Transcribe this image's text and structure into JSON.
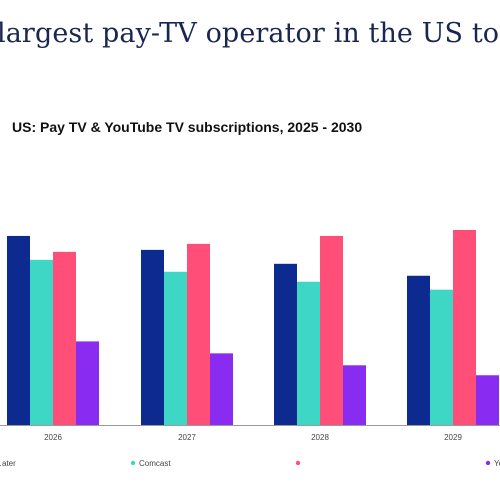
{
  "headline": "largest pay-TV operator in the US to",
  "chart_data": {
    "type": "bar",
    "title": "US: Pay TV & YouTube TV subscriptions, 2025 - 2030",
    "xlabel": "",
    "ylabel": "",
    "categories": [
      "2026",
      "2027",
      "2028",
      "2029"
    ],
    "series": [
      {
        "name": "…ater",
        "color": "#0c2a8f",
        "values": [
          95,
          88,
          81,
          75
        ]
      },
      {
        "name": "Comcast",
        "color": "#3ed6c5",
        "values": [
          83,
          77,
          72,
          68
        ]
      },
      {
        "name": "",
        "color": "#ff4f78",
        "values": [
          87,
          91,
          95,
          98
        ]
      },
      {
        "name": "YouTube TV",
        "color": "#8a2bf2",
        "values": [
          42,
          36,
          30,
          25
        ]
      }
    ],
    "ylim": [
      0,
      100
    ],
    "grid": false,
    "legend_position": "bottom"
  }
}
